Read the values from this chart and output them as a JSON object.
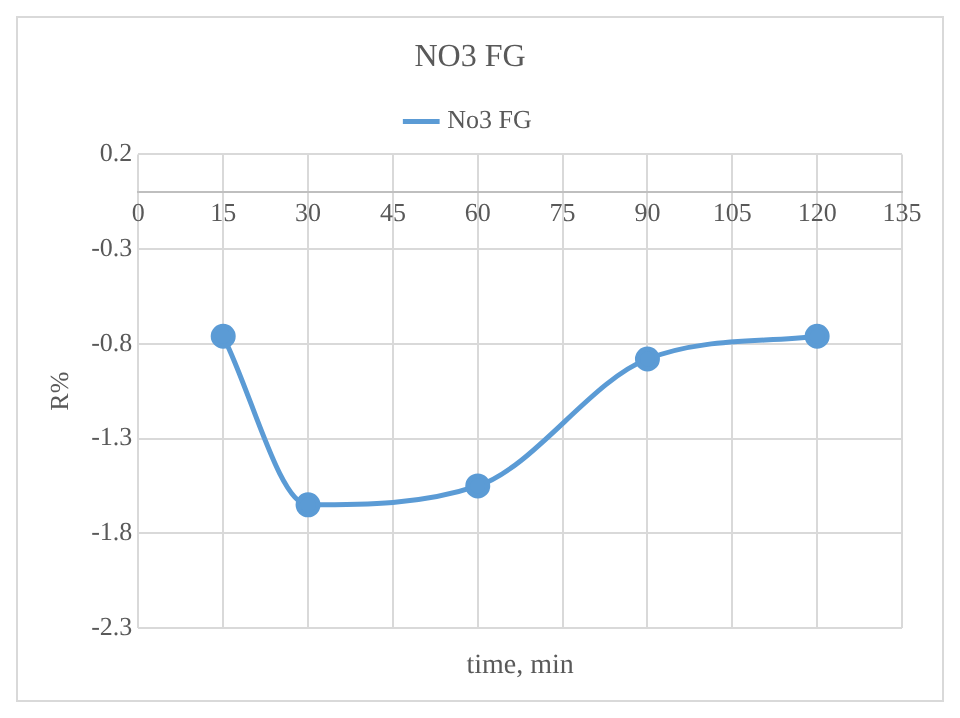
{
  "chart_data": {
    "type": "line",
    "title": "NO3 FG",
    "xlabel": "time, min",
    "ylabel": "R%",
    "x": [
      15,
      30,
      60,
      90,
      120
    ],
    "series": [
      {
        "name": "No3 FG",
        "color": "#5b9bd5",
        "values": [
          -0.76,
          -1.65,
          -1.55,
          -0.88,
          -0.76
        ]
      }
    ],
    "xlim": [
      0,
      135
    ],
    "xticks": [
      0,
      15,
      30,
      45,
      60,
      75,
      90,
      105,
      120,
      135
    ],
    "ylim": [
      -2.3,
      0.2
    ],
    "yticks": [
      -2.3,
      -1.8,
      -1.3,
      -0.8,
      -0.3,
      0.2
    ],
    "grid": true,
    "legend": "top",
    "marker": "circle",
    "line_style": "solid"
  }
}
